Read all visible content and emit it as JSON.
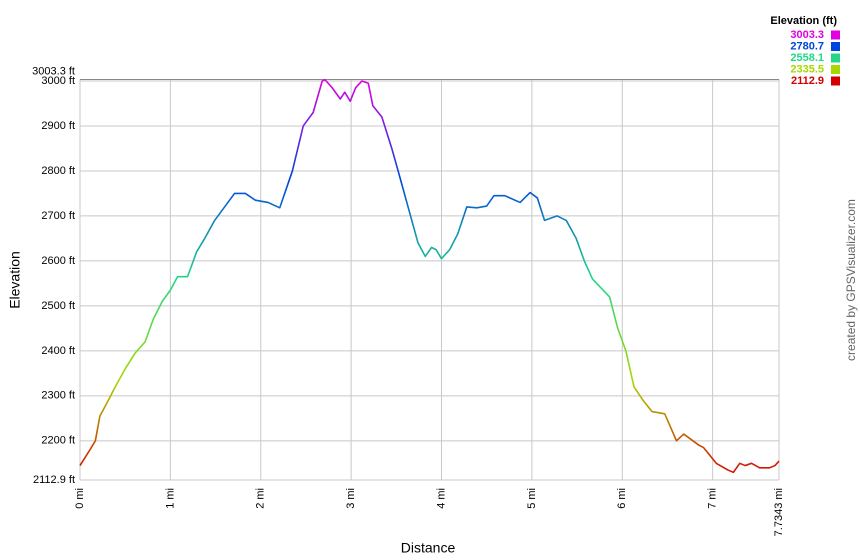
{
  "chart_data": {
    "type": "line",
    "x_label": "Distance",
    "y_label": "Elevation",
    "credit": "created by GPSVisualizer.com",
    "xlim": [
      0,
      7.7343
    ],
    "ylim": [
      2112.9,
      3003.3
    ],
    "xticks": [
      {
        "value": 0,
        "label": "0 mi"
      },
      {
        "value": 1,
        "label": "1 mi"
      },
      {
        "value": 2,
        "label": "2 mi"
      },
      {
        "value": 3,
        "label": "3 mi"
      },
      {
        "value": 4,
        "label": "4 mi"
      },
      {
        "value": 5,
        "label": "5 mi"
      },
      {
        "value": 6,
        "label": "6 mi"
      },
      {
        "value": 7,
        "label": "7 mi"
      },
      {
        "value": 7.7343,
        "label": "7.7343 mi"
      }
    ],
    "yticks": [
      {
        "value": 2112.9,
        "label": "2112.9 ft"
      },
      {
        "value": 2200,
        "label": "2200 ft"
      },
      {
        "value": 2300,
        "label": "2300 ft"
      },
      {
        "value": 2400,
        "label": "2400 ft"
      },
      {
        "value": 2500,
        "label": "2500 ft"
      },
      {
        "value": 2600,
        "label": "2600 ft"
      },
      {
        "value": 2700,
        "label": "2700 ft"
      },
      {
        "value": 2800,
        "label": "2800 ft"
      },
      {
        "value": 2900,
        "label": "2900 ft"
      },
      {
        "value": 3000,
        "label": "3000 ft"
      },
      {
        "value": 3003.3,
        "label": "3003.3 ft"
      }
    ],
    "grid": true,
    "legend": {
      "title": "Elevation (ft)",
      "entries": [
        {
          "value": 3003.3,
          "color": "#e000e0"
        },
        {
          "value": 2780.7,
          "color": "#0044dd"
        },
        {
          "value": 2558.1,
          "color": "#22d888"
        },
        {
          "value": 2335.5,
          "color": "#a8d800"
        },
        {
          "value": 2112.9,
          "color": "#d40000"
        }
      ]
    },
    "series": [
      {
        "name": "Elevation",
        "x": [
          0,
          0.11,
          0.17,
          0.22,
          0.3,
          0.39,
          0.5,
          0.61,
          0.72,
          0.81,
          0.91,
          1.0,
          1.08,
          1.19,
          1.29,
          1.38,
          1.49,
          1.6,
          1.71,
          1.83,
          1.94,
          2.08,
          2.21,
          2.35,
          2.47,
          2.58,
          2.68,
          2.71,
          2.79,
          2.88,
          2.93,
          2.99,
          3.05,
          3.12,
          3.19,
          3.24,
          3.34,
          3.45,
          3.52,
          3.63,
          3.74,
          3.82,
          3.89,
          3.94,
          4.0,
          4.09,
          4.18,
          4.28,
          4.39,
          4.5,
          4.58,
          4.7,
          4.87,
          4.98,
          5.06,
          5.14,
          5.28,
          5.38,
          5.49,
          5.58,
          5.67,
          5.86,
          5.95,
          6.04,
          6.13,
          6.23,
          6.33,
          6.47,
          6.6,
          6.68,
          6.85,
          6.9,
          7.04,
          7.17,
          7.23,
          7.3,
          7.36,
          7.43,
          7.52,
          7.63,
          7.69,
          7.7343
        ],
        "values": [
          2145,
          2180,
          2200,
          2255,
          2285,
          2320,
          2360,
          2395,
          2420,
          2470,
          2510,
          2535,
          2565,
          2565,
          2620,
          2650,
          2690,
          2720,
          2750,
          2750,
          2735,
          2730,
          2718,
          2800,
          2900,
          2930,
          3000,
          3003,
          2985,
          2960,
          2975,
          2955,
          2985,
          3000,
          2995,
          2945,
          2920,
          2850,
          2800,
          2720,
          2640,
          2610,
          2630,
          2625,
          2605,
          2625,
          2660,
          2720,
          2718,
          2722,
          2745,
          2745,
          2730,
          2752,
          2740,
          2690,
          2700,
          2690,
          2650,
          2600,
          2560,
          2520,
          2450,
          2400,
          2320,
          2290,
          2265,
          2260,
          2200,
          2215,
          2190,
          2185,
          2150,
          2135,
          2130,
          2150,
          2145,
          2150,
          2140,
          2140,
          2145,
          2155
        ]
      }
    ]
  }
}
